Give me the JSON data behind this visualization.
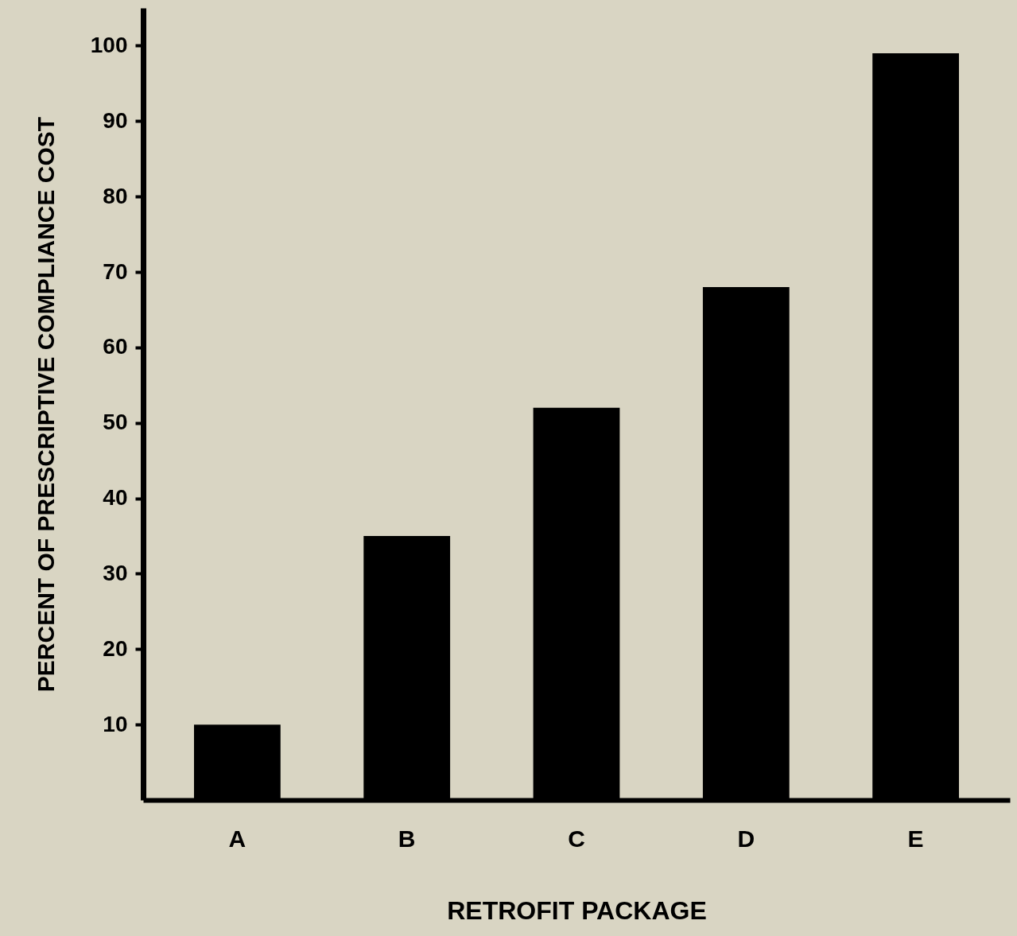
{
  "chart_data": {
    "type": "bar",
    "xlabel": "RETROFIT PACKAGE",
    "ylabel": "PERCENT OF PRESCRIPTIVE COMPLIANCE COST",
    "categories": [
      "A",
      "B",
      "C",
      "D",
      "E"
    ],
    "values": [
      10,
      35,
      52,
      68,
      99
    ],
    "color": "#000000",
    "ylim": [
      0,
      105
    ],
    "yticks": [
      10,
      20,
      30,
      40,
      50,
      60,
      70,
      80,
      90,
      100
    ],
    "grid": false
  }
}
